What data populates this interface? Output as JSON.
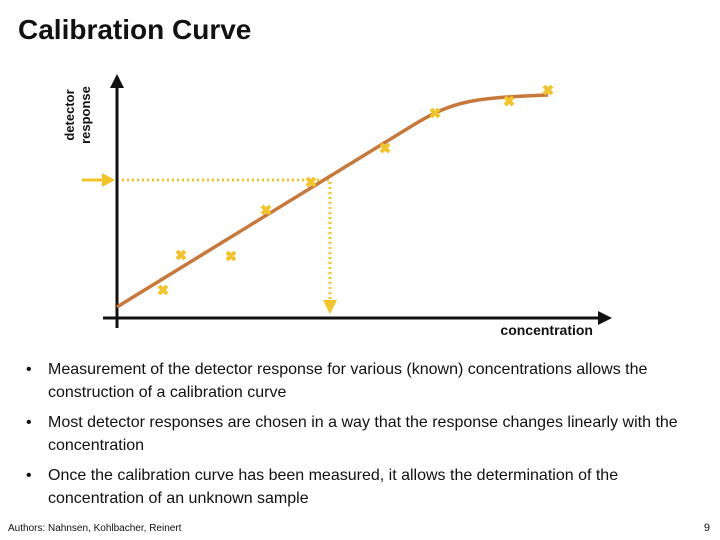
{
  "title": "Calibration Curve",
  "diagram": {
    "y_axis_label_lines": [
      "detector",
      "response"
    ],
    "x_axis_label": "concentration"
  },
  "bullets": [
    "Measurement of the detector response for various (known) concentrations allows the construction of a calibration curve",
    "Most detector responses are chosen in a way that the response changes linearly with the concentration",
    "Once the calibration curve has been measured, it allows the determination of the concentration of an unknown sample"
  ],
  "footer": {
    "authors": "Authors: Nahnsen, Kohlbacher, Reinert",
    "page": "9"
  }
}
